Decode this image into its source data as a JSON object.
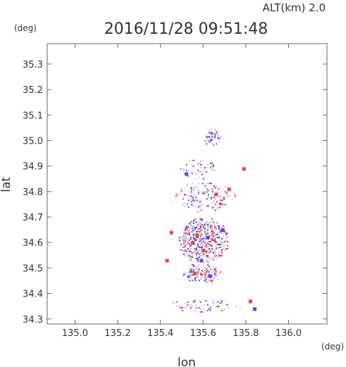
{
  "header": {
    "altitude_label": "ALT(km) 2.0",
    "timestamp": "2016/11/28 09:51:48",
    "unit_left": "(deg)",
    "unit_bottom": "(deg)"
  },
  "chart_data": {
    "type": "heatmap",
    "xlabel": "lon",
    "ylabel": "lat",
    "xlim": [
      134.87,
      136.18
    ],
    "ylim": [
      34.28,
      35.38
    ],
    "xticks": [
      "135.0",
      "135.2",
      "135.4",
      "135.6",
      "135.8",
      "136.0"
    ],
    "xtick_values": [
      135.0,
      135.2,
      135.4,
      135.6,
      135.8,
      136.0
    ],
    "yticks": [
      "34.3",
      "34.4",
      "34.5",
      "34.6",
      "34.7",
      "34.8",
      "34.9",
      "35.0",
      "35.1",
      "35.2",
      "35.3"
    ],
    "ytick_values": [
      34.3,
      34.4,
      34.5,
      34.6,
      34.7,
      34.8,
      34.9,
      35.0,
      35.1,
      35.2,
      35.3
    ],
    "grid": false,
    "colors": {
      "positive": "#e2454f",
      "negative": "#4a4ee0",
      "light_positive": "#f2b6bb",
      "light_negative": "#bcc4f5"
    },
    "clusters": [
      {
        "name": "northern-cluster",
        "lon": [
          135.6,
          135.68
        ],
        "lat": [
          34.98,
          35.05
        ],
        "density": 0.45
      },
      {
        "name": "upper-band",
        "lon": [
          135.48,
          135.66
        ],
        "lat": [
          34.85,
          34.93
        ],
        "density": 0.18
      },
      {
        "name": "mid-cluster",
        "lon": [
          135.45,
          135.75
        ],
        "lat": [
          34.72,
          34.84
        ],
        "density": 0.2
      },
      {
        "name": "main-cluster",
        "lon": [
          135.48,
          135.72
        ],
        "lat": [
          34.52,
          34.7
        ],
        "density": 0.55
      },
      {
        "name": "lower-cluster",
        "lon": [
          135.5,
          135.68
        ],
        "lat": [
          34.44,
          34.52
        ],
        "density": 0.45
      },
      {
        "name": "southern-band",
        "lon": [
          135.42,
          135.78
        ],
        "lat": [
          34.33,
          34.38
        ],
        "density": 0.2
      }
    ],
    "strong_echoes": [
      {
        "lon": 135.55,
        "lat": 34.6,
        "sign": "+"
      },
      {
        "lon": 135.57,
        "lat": 34.63,
        "sign": "+"
      },
      {
        "lon": 135.62,
        "lat": 34.62,
        "sign": "-"
      },
      {
        "lon": 135.6,
        "lat": 34.57,
        "sign": "+"
      },
      {
        "lon": 135.59,
        "lat": 34.53,
        "sign": "-"
      },
      {
        "lon": 135.56,
        "lat": 34.48,
        "sign": "+"
      },
      {
        "lon": 135.63,
        "lat": 34.47,
        "sign": "-"
      },
      {
        "lon": 135.43,
        "lat": 34.53,
        "sign": "+"
      },
      {
        "lon": 135.72,
        "lat": 34.81,
        "sign": "+"
      },
      {
        "lon": 135.79,
        "lat": 34.89,
        "sign": "+"
      },
      {
        "lon": 135.82,
        "lat": 34.37,
        "sign": "+"
      },
      {
        "lon": 135.84,
        "lat": 34.34,
        "sign": "-"
      },
      {
        "lon": 135.52,
        "lat": 34.87,
        "sign": "-"
      },
      {
        "lon": 135.66,
        "lat": 34.79,
        "sign": "+"
      },
      {
        "lon": 135.45,
        "lat": 34.64,
        "sign": "+"
      },
      {
        "lon": 135.69,
        "lat": 34.65,
        "sign": "-"
      }
    ]
  }
}
